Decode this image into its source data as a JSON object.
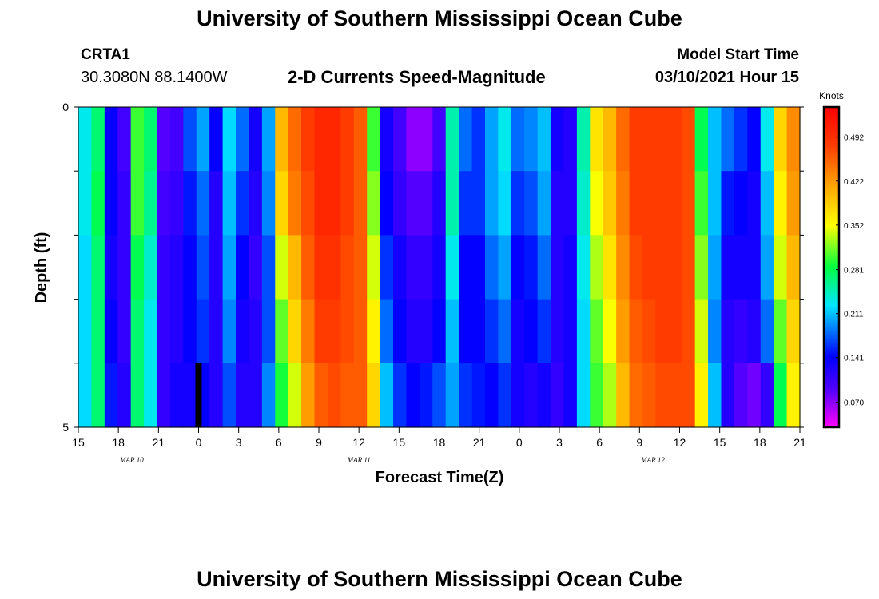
{
  "header": {
    "title": "University of Southern Mississippi Ocean Cube",
    "station_id": "CRTA1",
    "station_coords": "30.3080N 88.1400W",
    "plot_title": "2-D Currents Speed-Magnitude",
    "model_start_label": "Model Start Time",
    "model_start_value": "03/10/2021 Hour 15"
  },
  "footer": {
    "title": "University of Southern Mississippi Ocean Cube"
  },
  "chart_data": {
    "type": "heatmap",
    "title": "2-D Currents Speed-Magnitude",
    "xlabel": "Forecast Time(Z)",
    "ylabel": "Depth (ft)",
    "x_start_hour": 15,
    "x_end_hour": 69,
    "x_tick_hours": [
      15,
      18,
      21,
      24,
      27,
      30,
      33,
      36,
      39,
      42,
      45,
      48,
      51,
      54,
      57,
      60,
      63,
      66,
      69
    ],
    "x_tick_labels": [
      "15",
      "18",
      "21",
      "0",
      "3",
      "6",
      "9",
      "12",
      "15",
      "18",
      "21",
      "0",
      "3",
      "6",
      "9",
      "12",
      "15",
      "18",
      "21"
    ],
    "date_labels": [
      {
        "hour": 19,
        "text": "MAR 10"
      },
      {
        "hour": 36,
        "text": "MAR 11"
      },
      {
        "hour": 58,
        "text": "MAR 12"
      }
    ],
    "current_time_hour": 24,
    "y_ticks": [
      {
        "value": 0,
        "label": "0"
      },
      {
        "value": 5,
        "label": "5"
      }
    ],
    "ylim": [
      0,
      5
    ],
    "levels": 5,
    "colorbar": {
      "unit": "Knots",
      "ticks": [
        "0.070",
        "0.141",
        "0.211",
        "0.281",
        "0.352",
        "0.422",
        "0.492"
      ],
      "tick_values": [
        0.07,
        0.141,
        0.211,
        0.281,
        0.352,
        0.422,
        0.492
      ],
      "range": [
        0.03,
        0.54
      ]
    },
    "column_hours": [
      15,
      16,
      17,
      18,
      19,
      20,
      21,
      22,
      23,
      24,
      25,
      26,
      27,
      28,
      29,
      30,
      31,
      32,
      33,
      34,
      35,
      36,
      37,
      38,
      39,
      40,
      41,
      42,
      43,
      44,
      45,
      46,
      47,
      48,
      49,
      50,
      51,
      52,
      53,
      54,
      55,
      56,
      57,
      58,
      59,
      60,
      61,
      62,
      63,
      64,
      65,
      66,
      67,
      68,
      69
    ],
    "values": [
      [
        0.23,
        0.27,
        0.14,
        0.1,
        0.3,
        0.27,
        0.09,
        0.1,
        0.17,
        0.2,
        0.14,
        0.22,
        0.18,
        0.13,
        0.2,
        0.4,
        0.45,
        0.48,
        0.5,
        0.5,
        0.48,
        0.46,
        0.3,
        0.13,
        0.1,
        0.07,
        0.07,
        0.1,
        0.25,
        0.18,
        0.16,
        0.2,
        0.23,
        0.18,
        0.19,
        0.21,
        0.13,
        0.12,
        0.25,
        0.37,
        0.4,
        0.45,
        0.48,
        0.48,
        0.48,
        0.48,
        0.47,
        0.28,
        0.21,
        0.18,
        0.16,
        0.14,
        0.23,
        0.38,
        0.43
      ],
      [
        0.23,
        0.28,
        0.14,
        0.11,
        0.3,
        0.26,
        0.1,
        0.11,
        0.15,
        0.18,
        0.12,
        0.21,
        0.16,
        0.12,
        0.19,
        0.38,
        0.44,
        0.47,
        0.5,
        0.5,
        0.48,
        0.46,
        0.32,
        0.14,
        0.11,
        0.09,
        0.09,
        0.12,
        0.25,
        0.16,
        0.16,
        0.2,
        0.22,
        0.16,
        0.17,
        0.2,
        0.12,
        0.12,
        0.24,
        0.35,
        0.39,
        0.44,
        0.48,
        0.48,
        0.48,
        0.48,
        0.47,
        0.3,
        0.21,
        0.15,
        0.14,
        0.13,
        0.21,
        0.36,
        0.42
      ],
      [
        0.22,
        0.27,
        0.13,
        0.11,
        0.28,
        0.24,
        0.11,
        0.12,
        0.14,
        0.17,
        0.12,
        0.2,
        0.14,
        0.11,
        0.17,
        0.34,
        0.4,
        0.46,
        0.49,
        0.49,
        0.47,
        0.46,
        0.34,
        0.16,
        0.13,
        0.11,
        0.11,
        0.13,
        0.23,
        0.14,
        0.14,
        0.18,
        0.2,
        0.14,
        0.15,
        0.18,
        0.12,
        0.13,
        0.23,
        0.33,
        0.37,
        0.43,
        0.47,
        0.48,
        0.48,
        0.48,
        0.47,
        0.32,
        0.2,
        0.13,
        0.13,
        0.13,
        0.2,
        0.34,
        0.4
      ],
      [
        0.22,
        0.27,
        0.14,
        0.11,
        0.27,
        0.23,
        0.11,
        0.12,
        0.14,
        0.16,
        0.12,
        0.19,
        0.13,
        0.12,
        0.17,
        0.31,
        0.38,
        0.44,
        0.48,
        0.48,
        0.47,
        0.46,
        0.36,
        0.18,
        0.14,
        0.12,
        0.12,
        0.14,
        0.21,
        0.14,
        0.14,
        0.16,
        0.18,
        0.13,
        0.14,
        0.16,
        0.12,
        0.13,
        0.22,
        0.31,
        0.35,
        0.42,
        0.46,
        0.47,
        0.48,
        0.48,
        0.47,
        0.34,
        0.19,
        0.12,
        0.11,
        0.12,
        0.18,
        0.31,
        0.38
      ],
      [
        0.22,
        0.27,
        0.15,
        0.12,
        0.27,
        0.23,
        0.11,
        0.13,
        0.13,
        0.14,
        0.12,
        0.17,
        0.12,
        0.12,
        0.19,
        0.29,
        0.34,
        0.42,
        0.46,
        0.47,
        0.46,
        0.46,
        0.38,
        0.21,
        0.16,
        0.14,
        0.15,
        0.17,
        0.2,
        0.16,
        0.15,
        0.14,
        0.16,
        0.13,
        0.12,
        0.13,
        0.11,
        0.13,
        0.22,
        0.3,
        0.33,
        0.4,
        0.45,
        0.46,
        0.47,
        0.47,
        0.47,
        0.36,
        0.21,
        0.12,
        0.09,
        0.08,
        0.11,
        0.28,
        0.36
      ]
    ]
  }
}
